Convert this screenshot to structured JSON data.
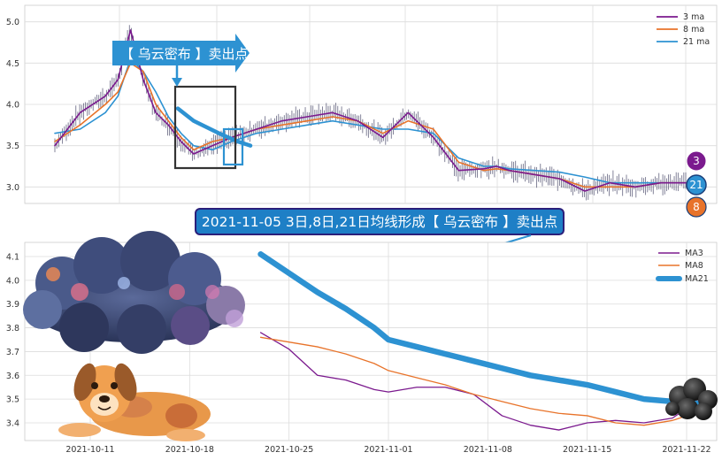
{
  "colors": {
    "ma3": "#7b1a8e",
    "ma8": "#e8732a",
    "ma21": "#2d92d2",
    "grid": "#dcdcdc",
    "plot_bg": "#ffffff",
    "banner_bg": "#1e7fc6",
    "banner_border": "#2b1f7a",
    "candle": "#4a4a6a"
  },
  "top_chart": {
    "callout_text": "【 乌云密布 】卖出点",
    "legend": [
      "3 ma",
      "8 ma",
      "21 ma"
    ],
    "badges": [
      "3",
      "21",
      "8"
    ]
  },
  "banner": {
    "text": "2021-11-05 3日,8日,21日均线形成【 乌云密布 】卖出点"
  },
  "decorations": {
    "dog_icon": "dog-illustration",
    "storm_cloud_icon": "storm-cloud-illustration",
    "small_cloud_icon": "dark-cloud-illustration"
  },
  "chart_data": [
    {
      "type": "line",
      "title": "",
      "xlabel": "",
      "ylabel": "",
      "ylim": [
        2.8,
        5.2
      ],
      "yticks": [
        "3.0",
        "3.5",
        "4.0",
        "4.5",
        "5.0"
      ],
      "grid": true,
      "legend_position": "top-right",
      "x_positions": [
        0,
        0.04,
        0.08,
        0.1,
        0.12,
        0.14,
        0.16,
        0.18,
        0.2,
        0.22,
        0.25,
        0.28,
        0.32,
        0.36,
        0.4,
        0.44,
        0.48,
        0.52,
        0.56,
        0.6,
        0.64,
        0.68,
        0.7,
        0.72,
        0.76,
        0.8,
        0.84,
        0.88,
        0.92,
        0.96,
        1.0
      ],
      "series": [
        {
          "name": "3 ma",
          "values": [
            3.5,
            3.9,
            4.1,
            4.3,
            4.9,
            4.3,
            3.9,
            3.75,
            3.55,
            3.4,
            3.5,
            3.6,
            3.7,
            3.8,
            3.85,
            3.9,
            3.8,
            3.6,
            3.9,
            3.6,
            3.2,
            3.22,
            3.25,
            3.2,
            3.15,
            3.1,
            2.95,
            3.05,
            3.0,
            3.05,
            3.05
          ]
        },
        {
          "name": "8 ma",
          "values": [
            3.55,
            3.75,
            4.0,
            4.15,
            4.5,
            4.4,
            4.0,
            3.8,
            3.6,
            3.45,
            3.55,
            3.6,
            3.7,
            3.75,
            3.8,
            3.85,
            3.8,
            3.65,
            3.8,
            3.7,
            3.3,
            3.2,
            3.22,
            3.2,
            3.15,
            3.1,
            3.0,
            3.0,
            3.0,
            3.05,
            3.05
          ]
        },
        {
          "name": "21 ma",
          "values": [
            3.65,
            3.7,
            3.9,
            4.1,
            4.55,
            4.4,
            4.15,
            3.85,
            3.65,
            3.5,
            3.45,
            3.55,
            3.65,
            3.7,
            3.75,
            3.8,
            3.75,
            3.7,
            3.7,
            3.65,
            3.35,
            3.25,
            3.25,
            3.22,
            3.2,
            3.18,
            3.12,
            3.05,
            3.05,
            3.05,
            3.05
          ]
        }
      ]
    },
    {
      "type": "line",
      "title": "",
      "xlabel": "",
      "ylabel": "",
      "ylim": [
        3.35,
        4.15
      ],
      "yticks": [
        "3.4",
        "3.5",
        "3.6",
        "3.7",
        "3.8",
        "3.9",
        "4.0",
        "4.1"
      ],
      "xticks": [
        "2021-10-11",
        "2021-10-18",
        "2021-10-25",
        "2021-11-01",
        "2021-11-08",
        "2021-11-15",
        "2021-11-22"
      ],
      "grid": true,
      "legend_position": "top-right",
      "x": [
        "2021-10-23",
        "2021-10-25",
        "2021-10-27",
        "2021-10-29",
        "2021-10-31",
        "2021-11-01",
        "2021-11-03",
        "2021-11-05",
        "2021-11-07",
        "2021-11-09",
        "2021-11-11",
        "2021-11-13",
        "2021-11-15",
        "2021-11-17",
        "2021-11-19",
        "2021-11-21",
        "2021-11-23"
      ],
      "series": [
        {
          "name": "MA3",
          "values": [
            3.78,
            3.71,
            3.6,
            3.58,
            3.54,
            3.53,
            3.55,
            3.55,
            3.52,
            3.43,
            3.39,
            3.37,
            3.4,
            3.41,
            3.4,
            3.42,
            3.5
          ]
        },
        {
          "name": "MA8",
          "values": [
            3.76,
            3.74,
            3.72,
            3.69,
            3.65,
            3.62,
            3.59,
            3.56,
            3.52,
            3.49,
            3.46,
            3.44,
            3.43,
            3.4,
            3.39,
            3.41,
            3.45
          ]
        },
        {
          "name": "MA21",
          "values": [
            4.11,
            4.03,
            3.95,
            3.88,
            3.8,
            3.75,
            3.72,
            3.69,
            3.66,
            3.63,
            3.6,
            3.58,
            3.56,
            3.53,
            3.5,
            3.49,
            3.48
          ]
        }
      ]
    }
  ]
}
